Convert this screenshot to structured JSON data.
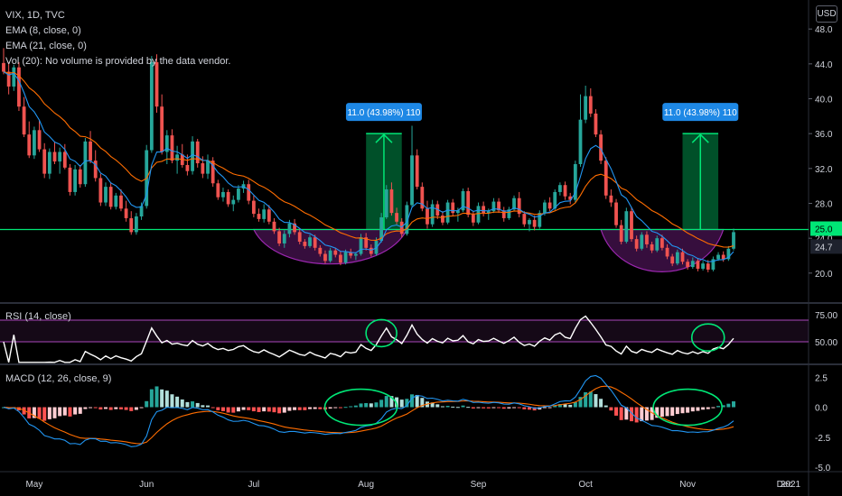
{
  "legend": {
    "symbol": "VIX, 1D, TVC",
    "ema8": "EMA (8, close, 0)",
    "ema21": "EMA (21, close, 0)",
    "vol": "Vol (20): No volume is provided by the data vendor.",
    "rsi": "RSI (14, close)",
    "macd": "MACD (12, 26, close, 9)"
  },
  "currency_button": "USD",
  "colors": {
    "up": "#26a69a",
    "down": "#ef5350",
    "ema8": "#2196f3",
    "ema21": "#ff6d00",
    "support": "#00e676",
    "bowl": "#9c27b0",
    "annotation": "#00e676",
    "rsi_line": "#ffffff",
    "rsi_band": "#ab47bc",
    "macd_line": "#2196f3",
    "signal_line": "#ff6d00",
    "hist_up_strong": "#26a69a",
    "hist_up_weak": "#b2dfdb",
    "hist_down_strong": "#ff5252",
    "hist_down_weak": "#ffcdd2",
    "price_tag_green": "#00e676",
    "price_tag_dark": "#1e222d",
    "label_blue": "#1e88e5"
  },
  "chart_data": [
    {
      "type": "candlestick",
      "title": "VIX, 1D, TVC",
      "ylim": [
        17.5,
        50.5
      ],
      "ticks": [
        20.0,
        24.0,
        28.0,
        32.0,
        36.0,
        40.0,
        44.0,
        48.0
      ],
      "tick_labels": [
        "20.0",
        "24.0",
        "28.0",
        "32.0",
        "36.0",
        "40.0",
        "44.0",
        "48.0"
      ],
      "x_labels": [
        "May",
        "Jun",
        "Jul",
        "Aug",
        "Sep",
        "Oct",
        "Nov",
        "Dec",
        "2021"
      ],
      "ohlc": [
        [
          44.1,
          45.8,
          42.8,
          43.1
        ],
        [
          43.1,
          44.2,
          40.5,
          41.4
        ],
        [
          41.4,
          43.9,
          40.9,
          43.6
        ],
        [
          43.6,
          44.2,
          38.6,
          39.1
        ],
        [
          39.1,
          40.2,
          35.6,
          35.9
        ],
        [
          35.9,
          37.4,
          33.2,
          33.5
        ],
        [
          33.5,
          36.8,
          33.1,
          36.4
        ],
        [
          36.4,
          37.6,
          33.9,
          34.2
        ],
        [
          34.2,
          34.9,
          30.9,
          31.4
        ],
        [
          31.4,
          34.3,
          30.8,
          33.9
        ],
        [
          33.9,
          35.1,
          32.5,
          32.8
        ],
        [
          32.8,
          34.4,
          31.4,
          33.9
        ],
        [
          33.9,
          34.8,
          31.9,
          32.1
        ],
        [
          32.1,
          32.5,
          28.9,
          29.3
        ],
        [
          29.3,
          32.4,
          28.9,
          31.9
        ],
        [
          31.9,
          32.4,
          29.8,
          30.2
        ],
        [
          30.2,
          35.5,
          29.9,
          35.1
        ],
        [
          35.1,
          36.3,
          32.6,
          32.9
        ],
        [
          32.9,
          34.1,
          30.5,
          30.9
        ],
        [
          30.9,
          31.4,
          27.7,
          28.1
        ],
        [
          28.1,
          30.4,
          27.7,
          29.9
        ],
        [
          29.9,
          30.4,
          27.3,
          27.6
        ],
        [
          27.6,
          29.2,
          27.3,
          28.9
        ],
        [
          28.9,
          29.6,
          27.1,
          27.4
        ],
        [
          27.4,
          28.3,
          25.9,
          26.3
        ],
        [
          26.3,
          27.1,
          24.4,
          24.7
        ],
        [
          24.7,
          26.9,
          24.4,
          26.5
        ],
        [
          26.5,
          28.1,
          26.1,
          27.7
        ],
        [
          27.7,
          34.7,
          27.4,
          34.1
        ],
        [
          34.1,
          44.9,
          33.8,
          44.2
        ],
        [
          44.2,
          45.1,
          38.4,
          39.1
        ],
        [
          39.1,
          40.5,
          33.6,
          33.9
        ],
        [
          33.9,
          36.4,
          32.5,
          35.8
        ],
        [
          35.8,
          36.5,
          32.6,
          32.9
        ],
        [
          32.9,
          34.6,
          31.4,
          33.6
        ],
        [
          33.6,
          34.8,
          32.1,
          32.4
        ],
        [
          32.4,
          33.6,
          31.2,
          31.7
        ],
        [
          31.7,
          35.7,
          31.3,
          35.1
        ],
        [
          35.1,
          35.4,
          32.1,
          32.6
        ],
        [
          32.6,
          33.4,
          30.9,
          31.4
        ],
        [
          31.4,
          33.6,
          30.8,
          32.9
        ],
        [
          32.9,
          33.3,
          29.9,
          30.3
        ],
        [
          30.3,
          30.7,
          28.4,
          28.7
        ],
        [
          28.7,
          29.8,
          28.2,
          29.3
        ],
        [
          29.3,
          29.6,
          27.6,
          27.9
        ],
        [
          27.9,
          28.9,
          27.1,
          28.4
        ],
        [
          28.4,
          30.1,
          28.1,
          29.7
        ],
        [
          29.7,
          30.6,
          29.2,
          30.2
        ],
        [
          30.2,
          30.7,
          27.9,
          28.3
        ],
        [
          28.3,
          28.9,
          26.4,
          26.8
        ],
        [
          26.8,
          27.4,
          25.9,
          26.2
        ],
        [
          26.2,
          27.9,
          25.8,
          27.3
        ],
        [
          27.3,
          27.8,
          25.6,
          25.9
        ],
        [
          25.9,
          26.3,
          24.5,
          24.8
        ],
        [
          24.8,
          25.2,
          23.1,
          23.4
        ],
        [
          23.4,
          24.9,
          22.9,
          24.5
        ],
        [
          24.5,
          26.1,
          24.1,
          25.7
        ],
        [
          25.7,
          26.2,
          24.4,
          24.7
        ],
        [
          24.7,
          25.1,
          23.3,
          23.6
        ],
        [
          23.6,
          23.9,
          22.8,
          23.1
        ],
        [
          23.1,
          24.4,
          22.9,
          24.1
        ],
        [
          24.1,
          24.4,
          22.6,
          22.9
        ],
        [
          22.9,
          23.2,
          21.9,
          22.2
        ],
        [
          22.2,
          22.6,
          21.1,
          21.4
        ],
        [
          21.4,
          22.9,
          21.2,
          22.6
        ],
        [
          22.6,
          22.9,
          21.8,
          22.1
        ],
        [
          22.1,
          22.5,
          20.9,
          21.2
        ],
        [
          21.2,
          22.7,
          21.0,
          22.4
        ],
        [
          22.4,
          22.8,
          21.7,
          22.0
        ],
        [
          22.0,
          22.4,
          21.5,
          22.2
        ],
        [
          22.2,
          24.5,
          22.0,
          24.1
        ],
        [
          24.1,
          24.6,
          22.6,
          22.9
        ],
        [
          22.9,
          23.3,
          21.9,
          22.2
        ],
        [
          22.2,
          24.1,
          22.0,
          23.7
        ],
        [
          23.7,
          26.9,
          23.5,
          26.4
        ],
        [
          26.4,
          30.1,
          26.2,
          29.6
        ],
        [
          29.6,
          30.4,
          26.6,
          26.9
        ],
        [
          26.9,
          27.5,
          25.6,
          25.9
        ],
        [
          25.9,
          26.3,
          24.1,
          24.5
        ],
        [
          24.5,
          28.2,
          24.3,
          27.8
        ],
        [
          27.8,
          36.9,
          27.5,
          33.5
        ],
        [
          33.5,
          34.2,
          29.6,
          29.9
        ],
        [
          29.9,
          30.4,
          27.1,
          27.4
        ],
        [
          27.4,
          28.3,
          25.1,
          25.6
        ],
        [
          25.6,
          28.4,
          25.3,
          27.9
        ],
        [
          27.9,
          28.3,
          26.2,
          26.6
        ],
        [
          26.6,
          27.1,
          25.5,
          25.8
        ],
        [
          25.8,
          28.4,
          25.6,
          28.1
        ],
        [
          28.1,
          28.5,
          26.6,
          26.9
        ],
        [
          26.9,
          27.5,
          25.9,
          27.2
        ],
        [
          27.2,
          29.7,
          27.0,
          29.4
        ],
        [
          29.4,
          29.8,
          26.4,
          26.7
        ],
        [
          26.7,
          27.1,
          25.4,
          25.8
        ],
        [
          25.8,
          28.1,
          25.6,
          27.7
        ],
        [
          27.7,
          28.2,
          26.5,
          26.9
        ],
        [
          26.9,
          27.4,
          26.1,
          27.1
        ],
        [
          27.1,
          28.6,
          26.9,
          28.2
        ],
        [
          28.2,
          28.6,
          26.9,
          27.2
        ],
        [
          27.2,
          27.6,
          25.9,
          26.3
        ],
        [
          26.3,
          27.6,
          26.1,
          27.3
        ],
        [
          27.3,
          28.9,
          27.1,
          28.6
        ],
        [
          28.6,
          29.3,
          26.4,
          26.8
        ],
        [
          26.8,
          27.1,
          25.3,
          25.6
        ],
        [
          25.6,
          26.3,
          24.8,
          26.1
        ],
        [
          26.1,
          26.6,
          24.9,
          25.3
        ],
        [
          25.3,
          27.2,
          25.1,
          26.9
        ],
        [
          26.9,
          28.4,
          26.6,
          28.1
        ],
        [
          28.1,
          28.7,
          27.1,
          27.4
        ],
        [
          27.4,
          29.6,
          27.2,
          29.3
        ],
        [
          29.3,
          30.4,
          28.9,
          30.1
        ],
        [
          30.1,
          30.5,
          28.4,
          28.8
        ],
        [
          28.8,
          29.2,
          27.9,
          28.4
        ],
        [
          28.4,
          32.9,
          28.1,
          32.5
        ],
        [
          32.5,
          40.5,
          32.2,
          37.6
        ],
        [
          37.6,
          41.5,
          37.2,
          40.3
        ],
        [
          40.3,
          41.2,
          37.9,
          38.3
        ],
        [
          38.3,
          38.8,
          35.6,
          35.9
        ],
        [
          35.9,
          36.4,
          32.5,
          32.9
        ],
        [
          32.9,
          33.3,
          28.5,
          28.9
        ],
        [
          28.9,
          29.6,
          27.6,
          28.1
        ],
        [
          28.1,
          28.5,
          25.2,
          25.5
        ],
        [
          25.5,
          26.1,
          23.3,
          23.6
        ],
        [
          23.6,
          27.5,
          23.4,
          27.1
        ],
        [
          27.1,
          27.6,
          23.6,
          23.9
        ],
        [
          23.9,
          24.3,
          22.5,
          22.8
        ],
        [
          22.8,
          24.7,
          22.6,
          24.4
        ],
        [
          24.4,
          24.8,
          22.9,
          23.3
        ],
        [
          23.3,
          23.6,
          22.3,
          22.6
        ],
        [
          22.6,
          24.3,
          22.4,
          24.0
        ],
        [
          24.0,
          24.4,
          22.6,
          22.9
        ],
        [
          22.9,
          23.3,
          21.6,
          21.9
        ],
        [
          21.9,
          22.2,
          20.8,
          21.1
        ],
        [
          21.1,
          22.7,
          20.9,
          22.4
        ],
        [
          22.4,
          22.8,
          21.0,
          21.3
        ],
        [
          21.3,
          21.6,
          20.4,
          20.7
        ],
        [
          20.7,
          21.8,
          20.5,
          21.4
        ],
        [
          21.4,
          21.7,
          20.2,
          20.5
        ],
        [
          20.5,
          21.4,
          20.3,
          21.1
        ],
        [
          21.1,
          21.5,
          20.1,
          20.4
        ],
        [
          20.4,
          21.9,
          20.2,
          21.6
        ],
        [
          21.6,
          22.4,
          21.4,
          22.1
        ],
        [
          22.1,
          22.5,
          21.3,
          21.6
        ],
        [
          21.6,
          23.1,
          21.4,
          22.8
        ],
        [
          22.8,
          25.1,
          22.6,
          24.7
        ]
      ],
      "ema8": "computed from ohlc close",
      "ema21": "computed from ohlc close",
      "support_level": 25.0,
      "price_tags": [
        "25.0",
        "24.7"
      ],
      "annotations": [
        {
          "label": "11.0 (43.98%) 110",
          "from": 25.0,
          "to": 36.0
        },
        {
          "label": "11.0 (43.98%) 110",
          "from": 25.0,
          "to": 36.0
        }
      ]
    },
    {
      "type": "line",
      "title": "RSI (14, close)",
      "ylim": [
        30,
        85
      ],
      "band": [
        50,
        70
      ],
      "tick_labels": [
        "75.00",
        "50.00"
      ],
      "ticks": [
        75,
        50
      ]
    },
    {
      "type": "bar",
      "title": "MACD (12, 26, close, 9)",
      "ylim": [
        -5.3,
        3.5
      ],
      "tick_labels": [
        "2.5",
        "0.0",
        "-2.5",
        "-5.0"
      ],
      "ticks": [
        2.5,
        0.0,
        -2.5,
        -5.0
      ]
    }
  ]
}
